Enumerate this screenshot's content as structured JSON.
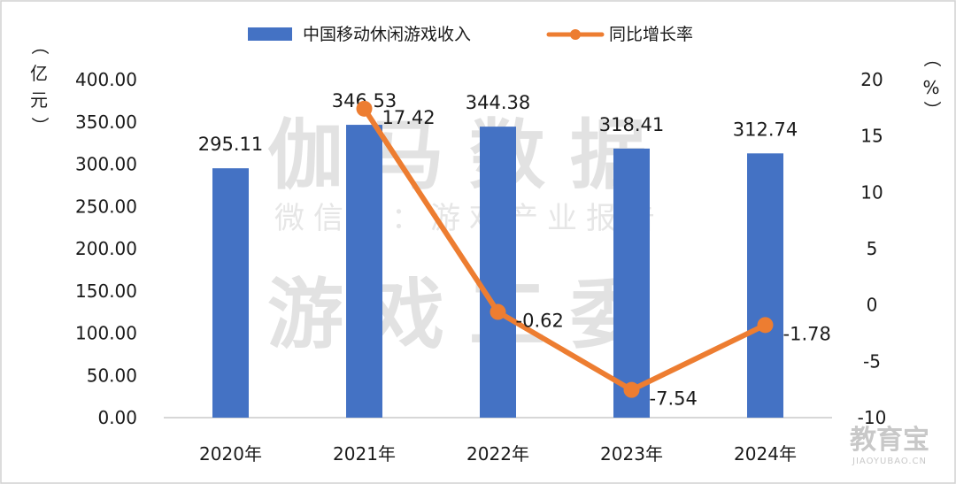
{
  "chart_data": {
    "type": "bar",
    "categories": [
      "2020年",
      "2021年",
      "2022年",
      "2023年",
      "2024年"
    ],
    "series": [
      {
        "name": "中国移动休闲游戏收入",
        "type": "bar",
        "axis": "left",
        "color": "#4472C4",
        "values": [
          295.11,
          346.53,
          344.38,
          318.41,
          312.74
        ],
        "labels": [
          "295.11",
          "346.53",
          "344.38",
          "318.41",
          "312.74"
        ]
      },
      {
        "name": "同比增长率",
        "type": "line",
        "axis": "right",
        "color": "#ED7D31",
        "values": [
          null,
          17.42,
          -0.62,
          -7.54,
          -1.78
        ],
        "labels": [
          "",
          "17.42",
          "-0.62",
          "-7.54",
          "-1.78"
        ]
      }
    ],
    "y_left": {
      "label": "（亿元）",
      "range": [
        0,
        400
      ],
      "ticks": [
        "0.00",
        "50.00",
        "100.00",
        "150.00",
        "200.00",
        "250.00",
        "300.00",
        "350.00",
        "400.00"
      ]
    },
    "y_right": {
      "label": "（%）",
      "range": [
        -10,
        20
      ],
      "ticks": [
        "-10",
        "-5",
        "0",
        "5",
        "10",
        "15",
        "20"
      ]
    },
    "legend": "top-center",
    "grid": false
  },
  "watermark": {
    "line1": "伽马数据",
    "line2": "微信号：游戏产业报告",
    "line3": "游戏工委",
    "corner": "教育宝",
    "corner_url": "JIAOYUBAO.CN"
  }
}
